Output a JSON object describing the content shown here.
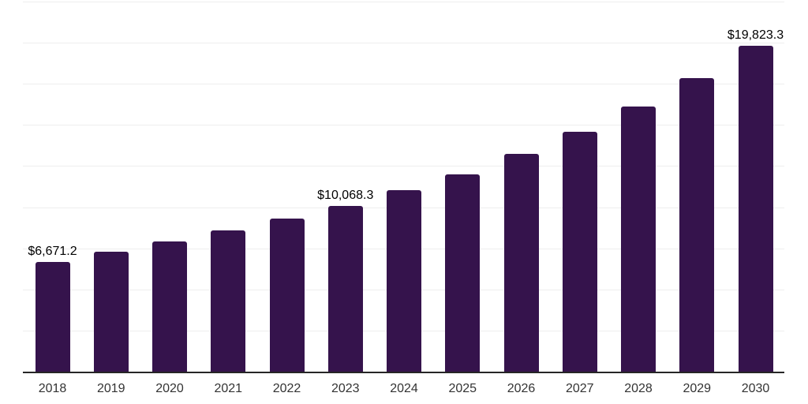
{
  "chart_data": {
    "type": "bar",
    "title": "",
    "xlabel": "",
    "ylabel": "",
    "legend": "none",
    "grid": true,
    "grid_step": 2500,
    "ylim": [
      0,
      22500
    ],
    "value_prefix": "$",
    "categories": [
      "2018",
      "2019",
      "2020",
      "2021",
      "2022",
      "2023",
      "2024",
      "2025",
      "2026",
      "2027",
      "2028",
      "2029",
      "2030"
    ],
    "values": [
      6671.2,
      7310,
      7915,
      8570,
      9305,
      10068.3,
      11045,
      12005,
      13240,
      14600,
      16120,
      17845,
      19823.3
    ],
    "data_labels": [
      {
        "index": 0,
        "text": "$6,671.2"
      },
      {
        "index": 5,
        "text": "$10,068.3"
      },
      {
        "index": 12,
        "text": "$19,823.3"
      }
    ],
    "colors": {
      "bar": "#35134c",
      "grid": "#eeeeee",
      "axis": "#262626",
      "data_label": "#000000",
      "tick_label": "#333333",
      "background": "#ffffff"
    }
  }
}
